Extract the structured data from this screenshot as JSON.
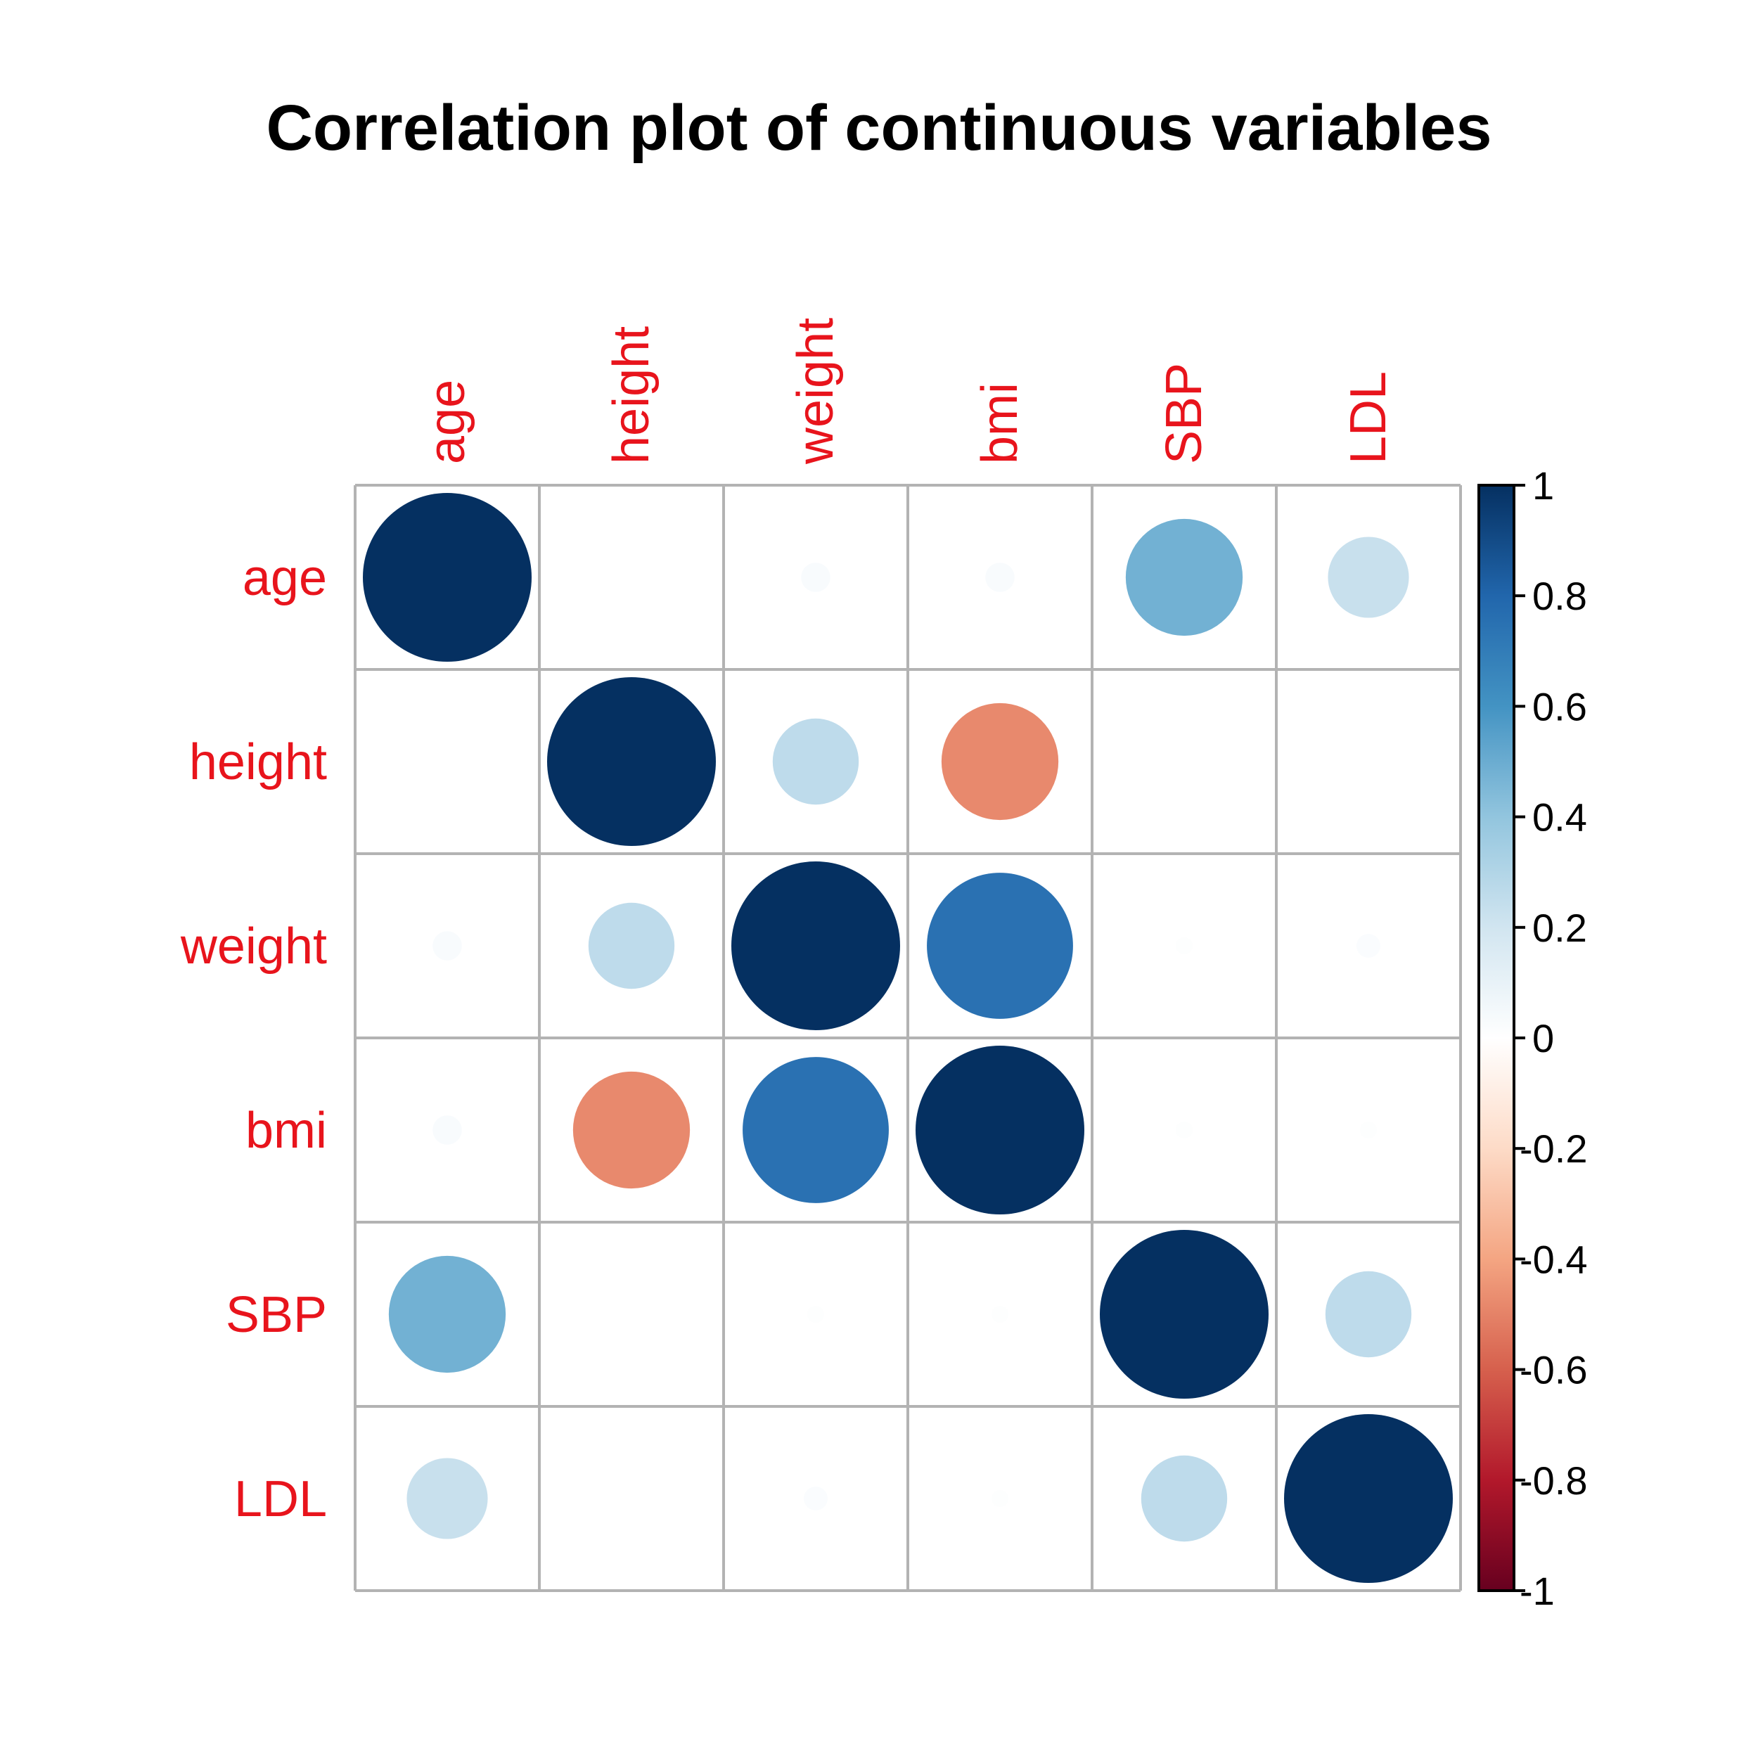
{
  "title": "Correlation plot of continuous variables",
  "colors": {
    "label": "#e8141c",
    "grid": "#b3b3b3",
    "text": "#000000"
  },
  "chart_data": {
    "type": "heatmap",
    "title": "Correlation plot of continuous variables",
    "variables": [
      "age",
      "height",
      "weight",
      "bmi",
      "SBP",
      "LDL"
    ],
    "matrix": [
      [
        1.0,
        0.0,
        0.03,
        0.03,
        0.48,
        0.23
      ],
      [
        0.0,
        1.0,
        0.26,
        -0.48,
        0.0,
        0.0
      ],
      [
        0.03,
        0.26,
        1.0,
        0.75,
        0.01,
        0.02
      ],
      [
        0.03,
        -0.48,
        0.75,
        1.0,
        0.01,
        0.01
      ],
      [
        0.48,
        0.0,
        0.01,
        0.01,
        1.0,
        0.26
      ],
      [
        0.23,
        0.0,
        0.02,
        0.01,
        0.26,
        1.0
      ]
    ],
    "colorbar": {
      "range": [
        -1,
        1
      ],
      "tick_labels": [
        "1",
        "0.8",
        "0.6",
        "0.4",
        "0.2",
        "0",
        "-0.2",
        "-0.4",
        "-0.6",
        "-0.8",
        "-1"
      ],
      "tick_values": [
        1,
        0.8,
        0.6,
        0.4,
        0.2,
        0,
        -0.2,
        -0.4,
        -0.6,
        -0.8,
        -1
      ],
      "colors": [
        "#67001f",
        "#b2182b",
        "#d6604d",
        "#f4a582",
        "#fddbc7",
        "#ffffff",
        "#d1e5f0",
        "#92c5de",
        "#4393c3",
        "#2166ac",
        "#053061"
      ]
    },
    "grid": true,
    "legend_position": "right"
  }
}
